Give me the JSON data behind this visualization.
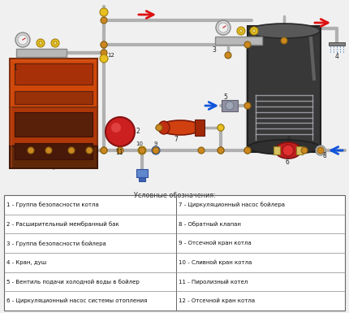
{
  "legend_title": "Условные обозначения:",
  "background_color": "#f0f0f0",
  "pipe_color": "#b0b0b0",
  "pipe_lw": 3.0,
  "legend_items_left": [
    "1 - Группа безопасности котла",
    "2 - Расширительный мембранный бак",
    "3 - Группа безопасности бойлера",
    "4 - Кран, душ",
    "5 - Вентиль подачи холодной воды в бойлер",
    "6 - Циркуляционный насос системы отопления"
  ],
  "legend_items_right": [
    "7 - Циркуляционный насос бойлера",
    "8 - Обратный клапан",
    "9 - Отсечной кран котла",
    "10 - Сливной кран котла",
    "11 - Пиролизный котел",
    "12 - Отсечной кран котла"
  ],
  "red_arrow": "#dd1111",
  "blue_arrow": "#1155dd",
  "yellow": "#e8c020",
  "yellow_dark": "#a08010",
  "orange_pump": "#d04010",
  "red_ball": "#cc2020",
  "blue_valve": "#6088cc",
  "pipe_joint": "#cc8820"
}
